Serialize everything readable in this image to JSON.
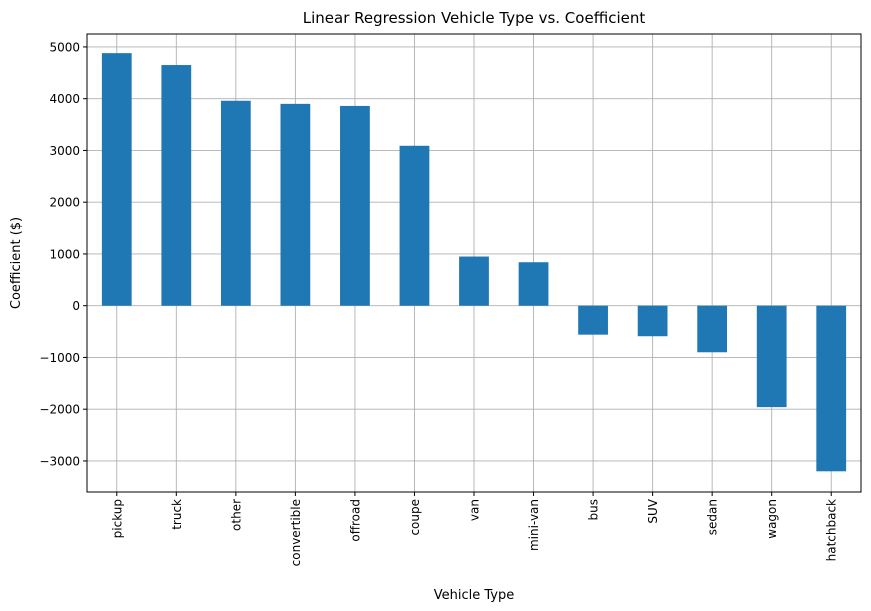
{
  "chart_data": {
    "type": "bar",
    "title": "Linear Regression Vehicle Type vs. Coefficient",
    "xlabel": "Vehicle Type",
    "ylabel": "Coefficient ($)",
    "categories": [
      "pickup",
      "truck",
      "other",
      "convertible",
      "offroad",
      "coupe",
      "van",
      "mini-van",
      "bus",
      "SUV",
      "sedan",
      "wagon",
      "hatchback"
    ],
    "values": [
      4880,
      4650,
      3960,
      3900,
      3860,
      3090,
      950,
      840,
      -560,
      -590,
      -900,
      -1960,
      -3200
    ],
    "ylim": [
      -3600,
      5250
    ],
    "yticks": [
      -3000,
      -2000,
      -1000,
      0,
      1000,
      2000,
      3000,
      4000,
      5000
    ],
    "ytick_labels": [
      "−3000",
      "−2000",
      "−1000",
      "0",
      "1000",
      "2000",
      "3000",
      "4000",
      "5000"
    ],
    "grid": true,
    "bar_color": "#1f77b4",
    "grid_color": "#b0b0b0"
  }
}
